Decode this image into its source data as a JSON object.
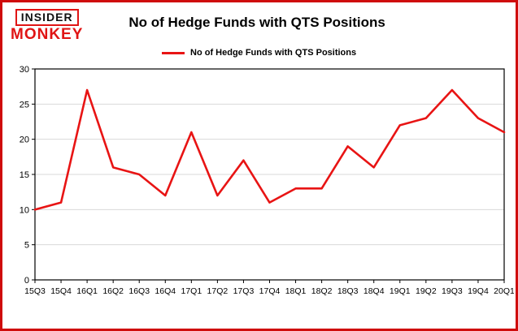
{
  "logo": {
    "line1": "INSIDER",
    "line2": "MONKEY"
  },
  "title": "No of Hedge Funds with QTS Positions",
  "legend": {
    "label": "No of Hedge Funds with QTS Positions"
  },
  "colors": {
    "border": "#cf0c0c",
    "accent": "#e81414"
  },
  "chart_data": {
    "type": "line",
    "title": "No of Hedge Funds with QTS Positions",
    "categories": [
      "15Q3",
      "15Q4",
      "16Q1",
      "16Q2",
      "16Q3",
      "16Q4",
      "17Q1",
      "17Q2",
      "17Q3",
      "17Q4",
      "18Q1",
      "18Q2",
      "18Q3",
      "18Q4",
      "19Q1",
      "19Q2",
      "19Q3",
      "19Q4",
      "20Q1"
    ],
    "values": [
      10,
      11,
      27,
      16,
      15,
      12,
      21,
      12,
      17,
      11,
      13,
      13,
      19,
      16,
      22,
      23,
      27,
      23,
      21
    ],
    "xlabel": "",
    "ylabel": "",
    "ylim": [
      0,
      30
    ],
    "yticks": [
      0,
      5,
      10,
      15,
      20,
      25,
      30
    ],
    "line_color": "#e81414",
    "grid": true,
    "legend_position": "top-left"
  }
}
